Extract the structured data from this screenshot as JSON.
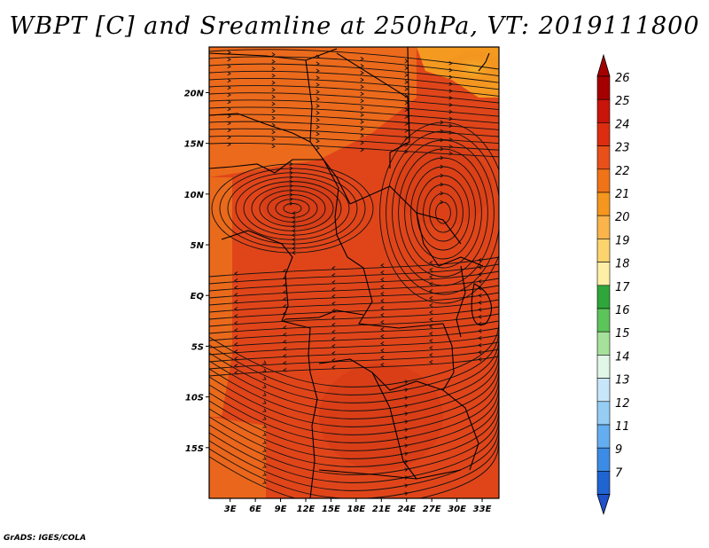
{
  "title": "WBPT [C] and Sreamline at 250hPa, VT: 2019111800",
  "credit": "GrADS: IGES/COLA",
  "map": {
    "lat_labels": [
      "20N",
      "15N",
      "10N",
      "5N",
      "EQ",
      "5S",
      "10S",
      "15S"
    ],
    "lon_labels": [
      "3E",
      "6E",
      "9E",
      "12E",
      "15E",
      "18E",
      "21E",
      "24E",
      "27E",
      "30E",
      "33E"
    ],
    "lat_values": [
      20,
      15,
      10,
      5,
      0,
      -5,
      -10,
      -15
    ],
    "lon_values": [
      3,
      6,
      9,
      12,
      15,
      18,
      21,
      24,
      27,
      30,
      33
    ],
    "extent": {
      "lon_min": 0.5,
      "lon_max": 35.0,
      "lat_min": -20.0,
      "lat_max": 24.5
    },
    "field": "wet-bulb potential temperature with streamlines",
    "fill_colors": {
      "dominant": "#e2461a",
      "lighter": "#ed6a1a",
      "warm_patch": "#f4a21e",
      "darkest": "#d23a16"
    }
  },
  "colorbar": {
    "labels": [
      "26",
      "25",
      "24",
      "23",
      "22",
      "21",
      "20",
      "19",
      "18",
      "17",
      "16",
      "15",
      "14",
      "13",
      "12",
      "11",
      "9",
      "7"
    ],
    "colors": [
      "#a50000",
      "#c8140a",
      "#dc2d10",
      "#e8501a",
      "#f07318",
      "#f5961e",
      "#fab44b",
      "#fcd46e",
      "#fdf0a6",
      "#2ea63a",
      "#5cc45a",
      "#a6e19c",
      "#e0f6e6",
      "#c8e6fa",
      "#96cdf5",
      "#64aef0",
      "#3c8ce6",
      "#2064d2"
    ],
    "arrow_top_color": "#a50000",
    "arrow_bottom_color": "#1e50c8"
  }
}
